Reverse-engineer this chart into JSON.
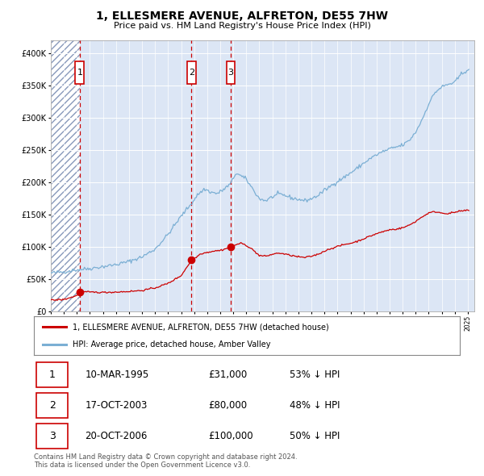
{
  "title": "1, ELLESMERE AVENUE, ALFRETON, DE55 7HW",
  "subtitle": "Price paid vs. HM Land Registry's House Price Index (HPI)",
  "background_color": "#ffffff",
  "plot_bg_color": "#dce6f5",
  "grid_color": "#ffffff",
  "sale_points": [
    {
      "year": 1995.208,
      "price": 31000,
      "label": "1"
    },
    {
      "year": 2003.792,
      "price": 80000,
      "label": "2"
    },
    {
      "year": 2006.792,
      "price": 100000,
      "label": "3"
    }
  ],
  "table_rows": [
    [
      "1",
      "10-MAR-1995",
      "£31,000",
      "53% ↓ HPI"
    ],
    [
      "2",
      "17-OCT-2003",
      "£80,000",
      "48% ↓ HPI"
    ],
    [
      "3",
      "20-OCT-2006",
      "£100,000",
      "50% ↓ HPI"
    ]
  ],
  "legend_property": "1, ELLESMERE AVENUE, ALFRETON, DE55 7HW (detached house)",
  "legend_hpi": "HPI: Average price, detached house, Amber Valley",
  "footer": "Contains HM Land Registry data © Crown copyright and database right 2024.\nThis data is licensed under the Open Government Licence v3.0.",
  "red_color": "#cc0000",
  "blue_color": "#7bafd4",
  "ylim": [
    0,
    420000
  ],
  "yticks": [
    0,
    50000,
    100000,
    150000,
    200000,
    250000,
    300000,
    350000,
    400000
  ],
  "xstart": 1993.0,
  "xend": 2025.5
}
